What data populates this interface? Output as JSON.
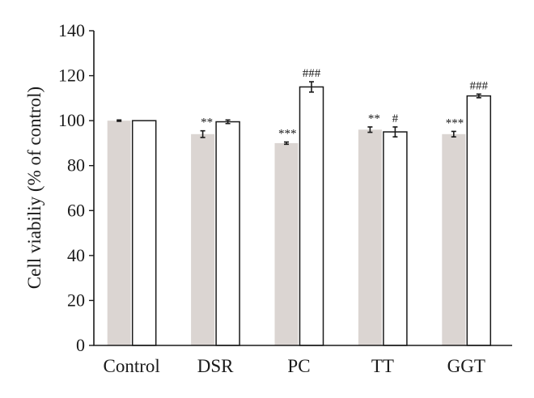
{
  "chart_data": {
    "type": "bar",
    "title": "",
    "xlabel": "",
    "ylabel": "Cell viabiliy (% of control)",
    "ylim": [
      0,
      140
    ],
    "yticks": [
      0,
      20,
      40,
      60,
      80,
      100,
      120,
      140
    ],
    "grid": false,
    "legend": "none",
    "categories": [
      "Control",
      "DSR",
      "PC",
      "TT",
      "GGT"
    ],
    "series": [
      {
        "color": "#dbd5d2",
        "edge": "none",
        "values": [
          100,
          94,
          90,
          96,
          94
        ],
        "errors": [
          0.3,
          1.5,
          0.5,
          1.2,
          1.2
        ],
        "annotations": [
          "",
          "**",
          "***",
          "**",
          "***"
        ]
      },
      {
        "color": "#ffffff",
        "edge": "#1a1a1a",
        "values": [
          100,
          99.5,
          115,
          95,
          111
        ],
        "errors": [
          0,
          0.8,
          2.3,
          2.2,
          0.8
        ],
        "annotations": [
          "",
          "",
          "###",
          "#",
          "###"
        ]
      }
    ]
  }
}
